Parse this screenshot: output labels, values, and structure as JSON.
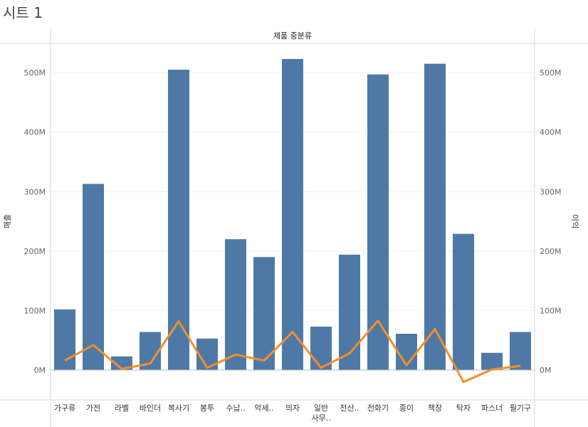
{
  "sheet_title": "시트 1",
  "chart_data": {
    "type": "bar",
    "column_header": "제품 중분류",
    "ylabel_left": "매출",
    "ylabel_right": "이익",
    "y_ticks": [
      "500M",
      "400M",
      "300M",
      "200M",
      "100M",
      "0M"
    ],
    "ylim": [
      -50,
      560
    ],
    "categories": [
      "가구류",
      "가전",
      "라벨",
      "바인더",
      "복사기",
      "봉투",
      "수납..",
      "악세..",
      "의자",
      "일반 사무..",
      "전산..",
      "전화기",
      "종이",
      "책장",
      "탁자",
      "파스너",
      "필기구"
    ],
    "series": [
      {
        "name": "매출",
        "type": "bar",
        "color": "#4e79a7",
        "values": [
          102,
          313,
          23,
          64,
          505,
          53,
          220,
          190,
          523,
          73,
          194,
          497,
          61,
          515,
          229,
          29,
          64
        ]
      },
      {
        "name": "이익",
        "type": "line",
        "color": "#f28e2b",
        "values": [
          16,
          42,
          2,
          11,
          82,
          4,
          26,
          16,
          64,
          4,
          28,
          83,
          8,
          69,
          -20,
          1,
          7
        ]
      }
    ]
  }
}
